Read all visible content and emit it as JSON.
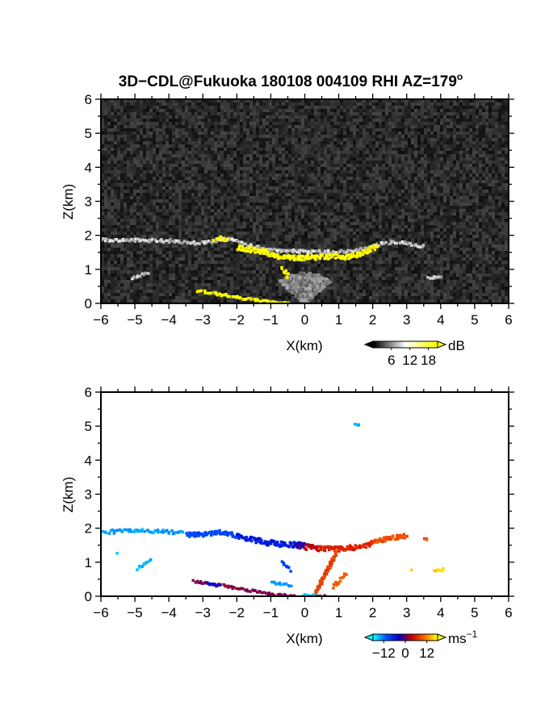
{
  "title": "3D−CDL@Fukuoka 180108 004109 RHI AZ=179",
  "title_superscript": "o",
  "chart_data": [
    {
      "type": "heatmap",
      "name": "reflectivity",
      "xlabel": "X(km)",
      "ylabel": "Z(km)",
      "xlim": [
        -6,
        6
      ],
      "ylim": [
        0,
        6
      ],
      "xticks": [
        "−6",
        "−5",
        "−4",
        "−3",
        "−2",
        "−1",
        "0",
        "1",
        "2",
        "3",
        "4",
        "5",
        "6"
      ],
      "yticks": [
        "0",
        "1",
        "2",
        "3",
        "4",
        "5",
        "6"
      ],
      "background": "noise",
      "colorbar": {
        "unit": "dB",
        "ticks": [
          "6",
          "12",
          "18"
        ],
        "tick_values": [
          6,
          12,
          18
        ],
        "range": [
          0,
          21
        ],
        "colors": [
          "#000000",
          "#ffffff",
          "#ffff00"
        ]
      },
      "layers": [
        {
          "x": [
            -6.0,
            -5.0,
            -4.0,
            -3.3,
            -2.8,
            -2.5,
            -2.2,
            -1.8,
            -1.2,
            -0.8,
            -0.4,
            0.0,
            0.5,
            1.0,
            1.5,
            1.9,
            2.2,
            2.6,
            3.0,
            3.5
          ],
          "z": [
            1.9,
            1.9,
            1.88,
            1.82,
            1.85,
            1.93,
            1.9,
            1.78,
            1.62,
            1.58,
            1.58,
            1.56,
            1.55,
            1.56,
            1.6,
            1.72,
            1.78,
            1.85,
            1.8,
            1.7
          ],
          "thickness": 0.09,
          "level": "gray"
        },
        {
          "x": [
            -2.7,
            -2.5,
            -2.3
          ],
          "z": [
            1.92,
            1.95,
            1.9
          ],
          "thickness": 0.1,
          "level": "yellow"
        },
        {
          "x": [
            -2.0,
            -1.6,
            -1.2,
            -0.8,
            -0.4,
            0.0,
            0.4,
            0.8,
            1.2,
            1.6,
            1.9,
            2.1
          ],
          "z": [
            1.68,
            1.62,
            1.55,
            1.42,
            1.38,
            1.38,
            1.4,
            1.42,
            1.4,
            1.5,
            1.62,
            1.72
          ],
          "thickness": 0.14,
          "level": "yellow"
        },
        {
          "x": [
            -0.7,
            -0.5
          ],
          "z": [
            1.08,
            0.8
          ],
          "thickness": 0.1,
          "level": "yellow"
        },
        {
          "x": [
            -5.1,
            -4.6
          ],
          "z": [
            0.8,
            0.95
          ],
          "thickness": 0.08,
          "level": "gray"
        },
        {
          "x": [
            -3.2,
            -2.5,
            -1.6,
            -0.8,
            -0.4
          ],
          "z": [
            0.42,
            0.3,
            0.15,
            0.05,
            0.02
          ],
          "thickness": 0.07,
          "level": "yellow"
        },
        {
          "x": [
            3.6,
            4.0
          ],
          "z": [
            0.8,
            0.8
          ],
          "thickness": 0.06,
          "level": "gray"
        }
      ]
    },
    {
      "type": "heatmap",
      "name": "doppler-velocity",
      "xlabel": "X(km)",
      "ylabel": "Z(km)",
      "xlim": [
        -6,
        6
      ],
      "ylim": [
        0,
        6
      ],
      "xticks": [
        "−6",
        "−5",
        "−4",
        "−3",
        "−2",
        "−1",
        "0",
        "1",
        "2",
        "3",
        "4",
        "5",
        "6"
      ],
      "yticks": [
        "0",
        "1",
        "2",
        "3",
        "4",
        "5",
        "6"
      ],
      "background": "white",
      "colorbar": {
        "unit": "ms",
        "unit_superscript": "−1",
        "ticks": [
          "−12",
          "0",
          "12"
        ],
        "tick_values": [
          -12,
          0,
          12
        ],
        "range": [
          -18,
          18
        ],
        "colors": [
          "#00ffff",
          "#0050ff",
          "#0000c8",
          "#c80000",
          "#ff6600",
          "#ffff00"
        ]
      },
      "layers": [
        {
          "x": [
            -6.0,
            -5.4,
            -4.8,
            -4.2,
            -3.6
          ],
          "z": [
            1.93,
            1.95,
            1.95,
            1.93,
            1.9
          ],
          "thickness": 0.11,
          "velocity": -14
        },
        {
          "x": [
            -3.5,
            -3.0,
            -2.6,
            -2.3,
            -2.0
          ],
          "z": [
            1.85,
            1.85,
            1.93,
            1.88,
            1.8
          ],
          "thickness": 0.12,
          "velocity": -10
        },
        {
          "x": [
            -2.0,
            -1.5,
            -1.0,
            -0.5,
            -0.1
          ],
          "z": [
            1.78,
            1.68,
            1.6,
            1.55,
            1.55
          ],
          "thickness": 0.16,
          "velocity": -6
        },
        {
          "x": [
            -0.3,
            0.0
          ],
          "z": [
            1.55,
            1.52
          ],
          "thickness": 0.18,
          "velocity": -2
        },
        {
          "x": [
            0.0,
            0.4
          ],
          "z": [
            1.5,
            1.45
          ],
          "thickness": 0.18,
          "velocity": 3
        },
        {
          "x": [
            0.4,
            1.0,
            1.6,
            2.0
          ],
          "z": [
            1.45,
            1.42,
            1.5,
            1.62
          ],
          "thickness": 0.15,
          "velocity": 6
        },
        {
          "x": [
            2.0,
            2.5,
            3.0
          ],
          "z": [
            1.65,
            1.75,
            1.82
          ],
          "thickness": 0.12,
          "velocity": 9
        },
        {
          "x": [
            3.5,
            3.6
          ],
          "z": [
            1.72,
            1.72
          ],
          "thickness": 0.05,
          "velocity": 9
        },
        {
          "x": [
            -4.6,
            -5.0
          ],
          "z": [
            1.1,
            0.8
          ],
          "thickness": 0.08,
          "velocity": -15
        },
        {
          "x": [
            -5.6
          ],
          "z": [
            1.3
          ],
          "thickness": 0.06,
          "velocity": -15
        },
        {
          "x": [
            -0.7,
            -0.45
          ],
          "z": [
            1.05,
            0.78
          ],
          "thickness": 0.08,
          "velocity": -10
        },
        {
          "x": [
            -3.3,
            -2.5,
            -1.6,
            -0.9,
            -0.3
          ],
          "z": [
            0.48,
            0.36,
            0.2,
            0.08,
            0.04
          ],
          "thickness": 0.06,
          "velocity": 1
        },
        {
          "x": [
            -2.9,
            -2.5
          ],
          "z": [
            0.4,
            0.35
          ],
          "thickness": 0.06,
          "velocity": -5
        },
        {
          "x": [
            0.3,
            0.5,
            0.7,
            0.9
          ],
          "z": [
            0.15,
            0.6,
            0.95,
            1.35
          ],
          "thickness": 0.12,
          "velocity": 8
        },
        {
          "x": [
            0.8,
            1.0,
            1.2
          ],
          "z": [
            0.3,
            0.55,
            0.75
          ],
          "thickness": 0.1,
          "velocity": 10
        },
        {
          "x": [
            -1.0,
            -0.4
          ],
          "z": [
            0.45,
            0.35
          ],
          "thickness": 0.06,
          "velocity": -14
        },
        {
          "x": [
            -0.1,
            0.3
          ],
          "z": [
            0.05,
            0.05
          ],
          "thickness": 0.09,
          "velocity": -16
        },
        {
          "x": [
            0.3,
            0.6
          ],
          "z": [
            0.05,
            0.05
          ],
          "thickness": 0.07,
          "velocity": 2
        },
        {
          "x": [
            1.45,
            1.6
          ],
          "z": [
            5.1,
            5.05
          ],
          "thickness": 0.06,
          "velocity": -15
        },
        {
          "x": [
            3.8,
            4.1
          ],
          "z": [
            0.82,
            0.82
          ],
          "thickness": 0.07,
          "velocity": 16
        },
        {
          "x": [
            3.1
          ],
          "z": [
            0.8
          ],
          "thickness": 0.05,
          "velocity": 16
        }
      ]
    }
  ]
}
